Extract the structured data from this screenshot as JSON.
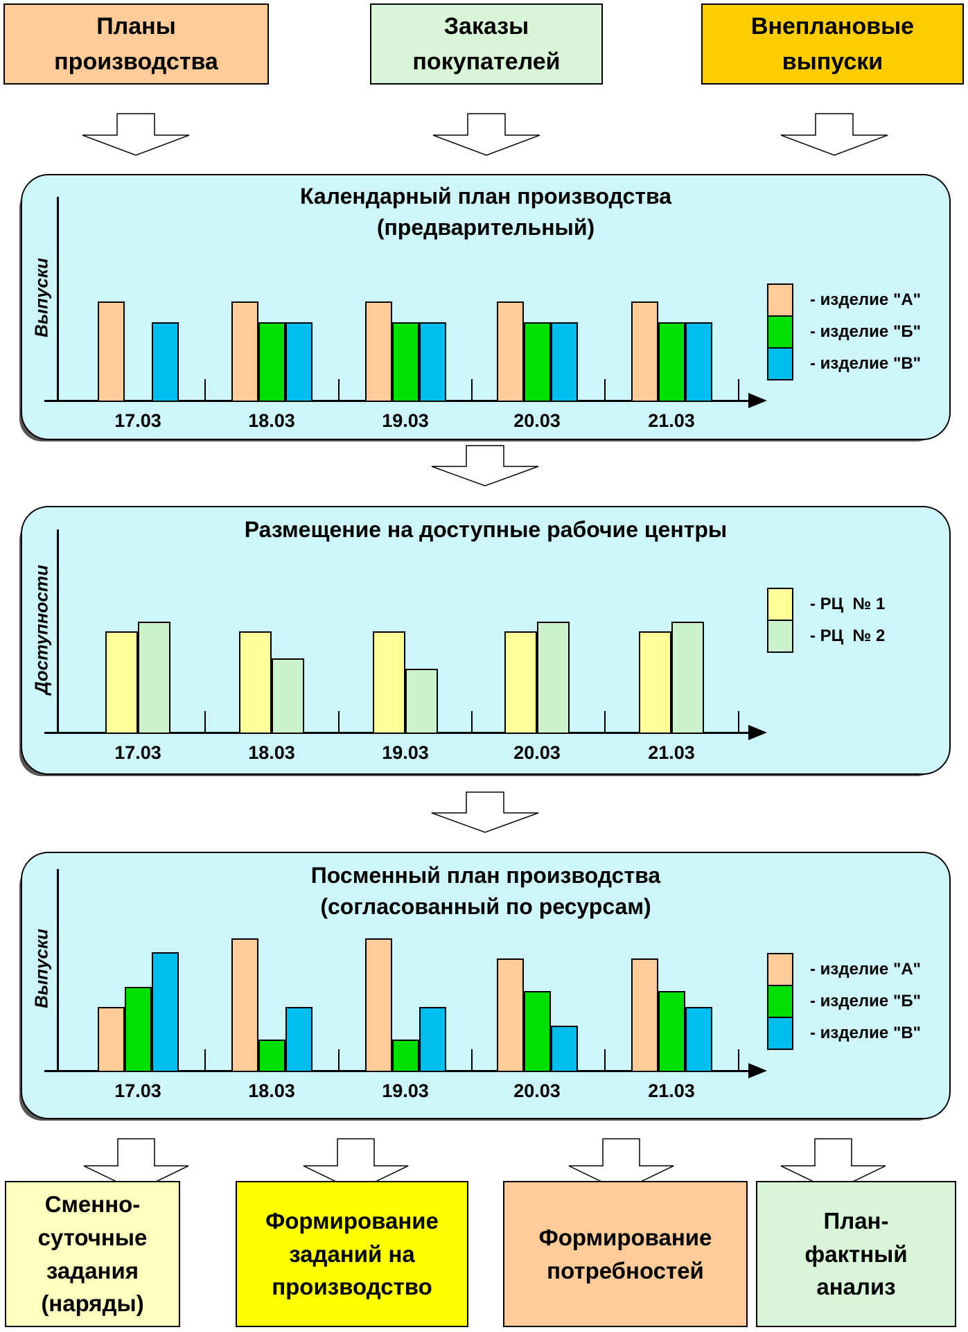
{
  "colors": {
    "panel_bg": "#CEF6FA",
    "arrow_fill": "#FFFFFF",
    "product_a": "#FFCC99",
    "product_b": "#00E000",
    "product_v": "#00BFF0",
    "work_center_1": "#FFFF99",
    "work_center_2": "#CCF2CC"
  },
  "top_boxes": [
    {
      "label": "Планы\nпроизводства",
      "bg": "#FFCC99"
    },
    {
      "label": "Заказы\nпокупателей",
      "bg": "#D8F5D8"
    },
    {
      "label": "Внеплановые\nвыпуски",
      "bg": "#FFCC00"
    }
  ],
  "bottom_boxes": [
    {
      "label": "Сменно-\nсуточные\nзадания\n(наряды)",
      "bg": "#FFFFC0"
    },
    {
      "label": "Формирование\nзаданий на\nпроизводство",
      "bg": "#FFFF00"
    },
    {
      "label": "Формирование\nпотребностей",
      "bg": "#FFCC99"
    },
    {
      "label": "План-\nфактный\nанализ",
      "bg": "#D8F5D8"
    }
  ],
  "chart_data": [
    {
      "type": "bar",
      "title": "Календарный план производства",
      "subtitle": "(предварительный)",
      "ylabel": "Выпуски",
      "xlabel": "",
      "categories": [
        "17.03",
        "18.03",
        "19.03",
        "20.03",
        "21.03"
      ],
      "series": [
        {
          "name": "- изделие \"А\"",
          "color": "#FFCC99",
          "values": [
            49,
            49,
            49,
            49,
            49
          ]
        },
        {
          "name": "- изделие \"Б\"",
          "color": "#00E000",
          "values": [
            0,
            39,
            39,
            39,
            39
          ]
        },
        {
          "name": "- изделие \"В\"",
          "color": "#00BFF0",
          "values": [
            39,
            39,
            39,
            39,
            39
          ]
        }
      ],
      "values_unit": "percent_of_y_axis_height",
      "ylim": [
        0,
        100
      ],
      "grid": false,
      "legend_position": "right"
    },
    {
      "type": "bar",
      "title": "Размещение на доступные рабочие центры",
      "subtitle": "",
      "ylabel": "Доступности",
      "xlabel": "",
      "categories": [
        "17.03",
        "18.03",
        "19.03",
        "20.03",
        "21.03"
      ],
      "series": [
        {
          "name": "- РЦ  № 1",
          "color": "#FFFF99",
          "values": [
            50,
            50,
            50,
            50,
            50
          ]
        },
        {
          "name": "- РЦ  № 2",
          "color": "#CCF2CC",
          "values": [
            55,
            37,
            32,
            55,
            55
          ]
        }
      ],
      "values_unit": "percent_of_y_axis_height",
      "ylim": [
        0,
        100
      ],
      "grid": false,
      "legend_position": "right"
    },
    {
      "type": "bar",
      "title": "Посменный план производства",
      "subtitle": "(согласованный по ресурсам)",
      "ylabel": "Выпуски",
      "xlabel": "",
      "categories": [
        "17.03",
        "18.03",
        "19.03",
        "20.03",
        "21.03"
      ],
      "series": [
        {
          "name": "- изделие \"А\"",
          "color": "#FFCC99",
          "values": [
            32,
            66,
            66,
            56,
            56
          ]
        },
        {
          "name": "- изделие \"Б\"",
          "color": "#00E000",
          "values": [
            42,
            16,
            16,
            40,
            40
          ]
        },
        {
          "name": "- изделие \"В\"",
          "color": "#00BFF0",
          "values": [
            59,
            32,
            32,
            23,
            32
          ]
        }
      ],
      "values_unit": "percent_of_y_axis_height",
      "ylim": [
        0,
        100
      ],
      "grid": false,
      "legend_position": "right"
    }
  ]
}
